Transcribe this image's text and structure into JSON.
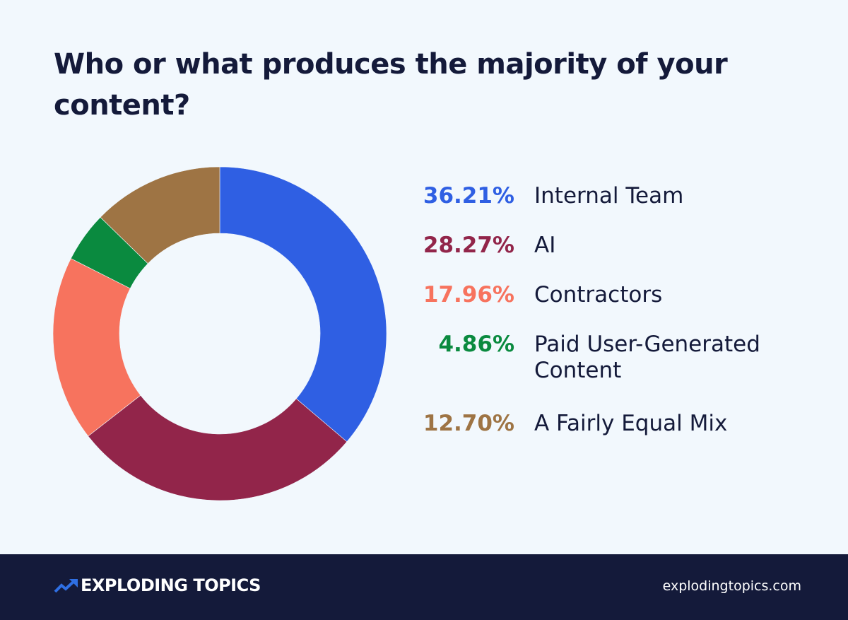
{
  "chart_data": {
    "type": "pie",
    "donut": true,
    "title": "Who or what produces the majority of your content?",
    "categories": [
      "Internal Team",
      "AI",
      "Contractors",
      "Paid User-Generated Content",
      "A Fairly Equal Mix"
    ],
    "values": [
      36.21,
      28.27,
      17.96,
      4.86,
      12.7
    ],
    "labels": [
      "36.21%",
      "28.27%",
      "17.96%",
      "4.86%",
      "12.70%"
    ],
    "colors": [
      "#2f5fe3",
      "#92254a",
      "#f7735e",
      "#0a8a3f",
      "#9e7444"
    ],
    "legend_placement": "right"
  },
  "footer": {
    "brand": "EXPLODING TOPICS",
    "website": "explodingtopics.com",
    "brand_icon": "trending-arrow-icon"
  }
}
